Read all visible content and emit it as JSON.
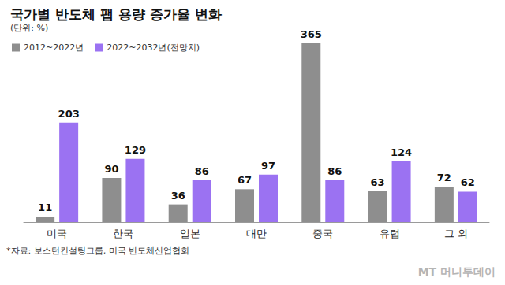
{
  "chart_data": {
    "type": "bar",
    "title": "국가별 반도체 팹 용량 증가율 변화",
    "subtitle": "(단위: %)",
    "categories": [
      "미국",
      "한국",
      "일본",
      "대만",
      "중국",
      "유럽",
      "그 외"
    ],
    "series": [
      {
        "name": "2012~2022년",
        "color": "#8e8e8e",
        "values": [
          11,
          90,
          36,
          67,
          365,
          63,
          72
        ]
      },
      {
        "name": "2022~2032년(전망치)",
        "color": "#9b72f2",
        "values": [
          203,
          129,
          86,
          97,
          86,
          124,
          62
        ]
      }
    ],
    "ylim": [
      0,
      365
    ],
    "grid": false,
    "legend": "top-left",
    "data_labels": true,
    "tick_labels": "x",
    "source": "*자료: 보스턴컨설팅그룹, 미국 반도체산업협회",
    "credit": "MT 머니투데이"
  }
}
